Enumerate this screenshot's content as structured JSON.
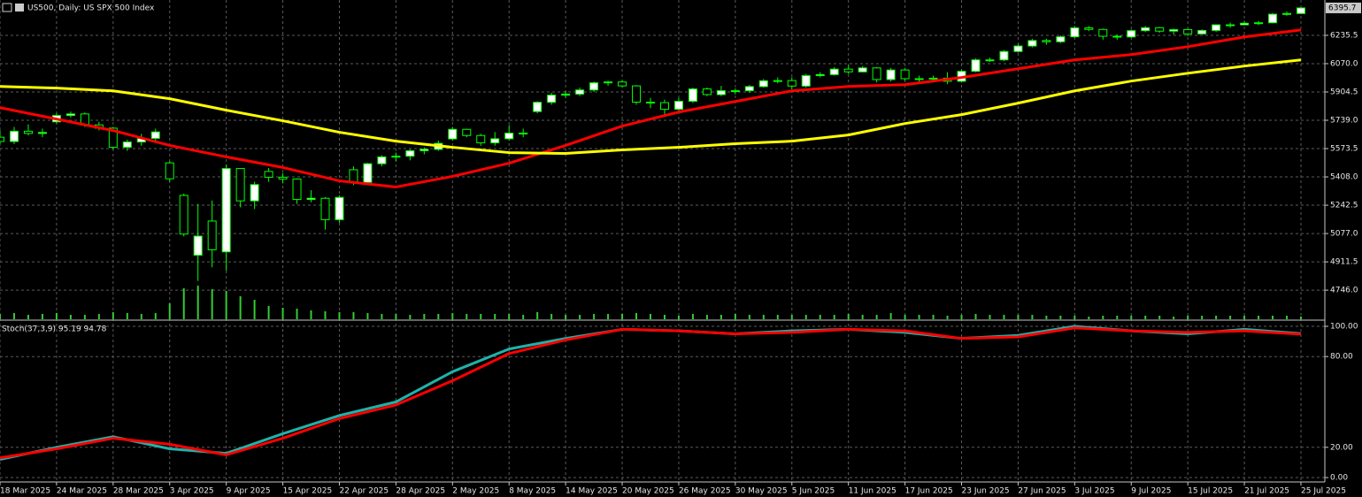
{
  "chart_data": [
    {
      "type": "candlestick",
      "title": "US500, Daily:  US SPX 500 Index",
      "categories": [
        "18 Mar 2025",
        null,
        null,
        null,
        "24 Mar 2025",
        null,
        null,
        null,
        "28 Mar 2025",
        null,
        null,
        null,
        "3 Apr 2025",
        null,
        null,
        null,
        "9 Apr 2025",
        null,
        null,
        null,
        "15 Apr 2025",
        null,
        null,
        null,
        "22 Apr 2025",
        null,
        null,
        null,
        "28 Apr 2025",
        null,
        null,
        null,
        "2 May 2025",
        null,
        null,
        null,
        "8 May 2025",
        null,
        null,
        null,
        "14 May 2025",
        null,
        null,
        null,
        "20 May 2025",
        null,
        null,
        null,
        "26 May 2025",
        null,
        null,
        null,
        "30 May 2025",
        null,
        null,
        null,
        "5 Jun 2025",
        null,
        null,
        null,
        "11 Jun 2025",
        null,
        null,
        null,
        "17 Jun 2025",
        null,
        null,
        null,
        "23 Jun 2025",
        null,
        null,
        null,
        "27 Jun 2025",
        null,
        null,
        null,
        "3 Jul 2025",
        null,
        null,
        null,
        "9 Jul 2025",
        null,
        null,
        null,
        "15 Jul 2025",
        null,
        null,
        null,
        "21 Jul 2025",
        null,
        null,
        null,
        "25 Jul 2025"
      ],
      "open": [
        5640,
        5615,
        5675,
        5662,
        5730,
        5767,
        5776,
        5712,
        5693,
        5581,
        5612,
        5633,
        5490,
        5300,
        4950,
        5150,
        4970,
        5457,
        5268,
        5440,
        5406,
        5396,
        5276,
        5283,
        5158,
        5450,
        5376,
        5485,
        5525,
        5529,
        5561,
        5569,
        5630,
        5686,
        5650,
        5607,
        5631,
        5664,
        5790,
        5844,
        5886,
        5892,
        5916,
        5958,
        5963,
        5940,
        5845,
        5842,
        5803,
        5850,
        5922,
        5889,
        5912,
        5912,
        5936,
        5970,
        5971,
        5939,
        6000,
        6006,
        6038,
        6022,
        6045,
        5977,
        6033,
        5982,
        5981,
        5985,
        5967,
        6025,
        6092,
        6092,
        6141,
        6173,
        6205,
        6198,
        6227,
        6279,
        6270,
        6230,
        6226,
        6263,
        6280,
        6260,
        6269,
        6244,
        6264,
        6297,
        6297,
        6306,
        6309,
        6359,
        6363
      ],
      "high": [
        5680,
        5700,
        5715,
        5690,
        5780,
        5790,
        5785,
        5730,
        5700,
        5625,
        5660,
        5690,
        5500,
        5310,
        5250,
        5270,
        5480,
        5460,
        5380,
        5460,
        5430,
        5400,
        5330,
        5290,
        5300,
        5470,
        5490,
        5535,
        5550,
        5570,
        5580,
        5620,
        5700,
        5690,
        5660,
        5670,
        5710,
        5690,
        5850,
        5900,
        5910,
        5930,
        5965,
        5970,
        5975,
        5945,
        5870,
        5860,
        5870,
        5930,
        5930,
        5940,
        5925,
        5945,
        5980,
        5990,
        5990,
        6010,
        6020,
        6050,
        6060,
        6055,
        6050,
        6045,
        6045,
        6000,
        6000,
        6020,
        6035,
        6100,
        6105,
        6150,
        6185,
        6215,
        6215,
        6235,
        6290,
        6290,
        6275,
        6240,
        6270,
        6290,
        6285,
        6275,
        6275,
        6270,
        6300,
        6310,
        6320,
        6320,
        6365,
        6375,
        6400
      ],
      "low": [
        5600,
        5600,
        5650,
        5640,
        5720,
        5755,
        5700,
        5680,
        5570,
        5560,
        5590,
        5610,
        5380,
        5060,
        4800,
        4880,
        4860,
        5230,
        5220,
        5380,
        5370,
        5250,
        5260,
        5100,
        5140,
        5360,
        5360,
        5470,
        5500,
        5505,
        5540,
        5560,
        5620,
        5640,
        5590,
        5590,
        5620,
        5640,
        5780,
        5830,
        5870,
        5880,
        5905,
        5940,
        5930,
        5830,
        5810,
        5770,
        5790,
        5840,
        5880,
        5880,
        5890,
        5900,
        5930,
        5955,
        5920,
        5930,
        5990,
        6000,
        6010,
        6020,
        5960,
        5965,
        5970,
        5960,
        5960,
        5950,
        5960,
        6020,
        6080,
        6085,
        6135,
        6165,
        6180,
        6190,
        6220,
        6260,
        6210,
        6210,
        6220,
        6255,
        6250,
        6240,
        6230,
        6240,
        6255,
        6280,
        6295,
        6295,
        6305,
        6350,
        6360
      ],
      "close": [
        5615,
        5675,
        5662,
        5668,
        5767,
        5776,
        5712,
        5693,
        5581,
        5612,
        5633,
        5671,
        5397,
        5074,
        5062,
        4982,
        5457,
        5268,
        5363,
        5406,
        5396,
        5276,
        5283,
        5158,
        5288,
        5376,
        5485,
        5525,
        5529,
        5561,
        5569,
        5604,
        5686,
        5650,
        5607,
        5631,
        5664,
        5660,
        5844,
        5886,
        5892,
        5916,
        5958,
        5963,
        5940,
        5845,
        5842,
        5803,
        5850,
        5922,
        5889,
        5912,
        5912,
        5936,
        5970,
        5971,
        5939,
        6000,
        6006,
        6038,
        6022,
        6045,
        5977,
        6033,
        5982,
        5981,
        5985,
        5967,
        6025,
        6092,
        6092,
        6141,
        6173,
        6205,
        6198,
        6227,
        6279,
        6270,
        6230,
        6226,
        6263,
        6280,
        6260,
        6269,
        6244,
        6264,
        6297,
        6297,
        6306,
        6309,
        6359,
        6363,
        6395.7
      ],
      "up_color": "#ffffff",
      "down_color": "#000000",
      "outline_color": "#00ff00",
      "series": [
        {
          "color": "#ff0000",
          "x": [
            0,
            4,
            8,
            12,
            16,
            20,
            24,
            28,
            32,
            36,
            40,
            44,
            48,
            52,
            56,
            60,
            64,
            68,
            72,
            76,
            80,
            84,
            88,
            92
          ],
          "values": [
            5813,
            5746,
            5679,
            5592,
            5525,
            5463,
            5385,
            5349,
            5411,
            5488,
            5592,
            5705,
            5787,
            5849,
            5911,
            5937,
            5947,
            5989,
            6040,
            6092,
            6123,
            6169,
            6226,
            6267
          ]
        },
        {
          "color": "#ffff00",
          "x": [
            0,
            4,
            8,
            12,
            16,
            20,
            24,
            28,
            32,
            36,
            40,
            44,
            48,
            52,
            56,
            60,
            64,
            68,
            72,
            76,
            80,
            84,
            88,
            92
          ],
          "values": [
            5937,
            5927,
            5911,
            5865,
            5798,
            5736,
            5669,
            5617,
            5581,
            5550,
            5545,
            5566,
            5581,
            5602,
            5617,
            5653,
            5720,
            5772,
            5839,
            5911,
            5968,
            6014,
            6056,
            6092
          ]
        }
      ],
      "volume": {
        "color": "#32cd32",
        "values": [
          6,
          7,
          5,
          6,
          7,
          5,
          5,
          6,
          8,
          7,
          6,
          7,
          18,
          35,
          38,
          34,
          32,
          26,
          22,
          15,
          13,
          12,
          10,
          9,
          8,
          8,
          7,
          6,
          6,
          5,
          6,
          6,
          7,
          6,
          6,
          6,
          6,
          5,
          8,
          6,
          5,
          5,
          6,
          6,
          6,
          7,
          6,
          5,
          4,
          6,
          5,
          5,
          6,
          5,
          5,
          5,
          5,
          5,
          5,
          5,
          6,
          5,
          5,
          7,
          5,
          5,
          5,
          4,
          5,
          6,
          5,
          5,
          5,
          5,
          4,
          4,
          4,
          3,
          4,
          4,
          4,
          4,
          4,
          3,
          4,
          4,
          4,
          4,
          4,
          4,
          4,
          4,
          3
        ]
      },
      "ylim": [
        4576,
        6442
      ],
      "yticks": [
        6235.5,
        {
          "value": 6070,
          "label": "6070.0"
        },
        5904.5,
        {
          "value": 5739,
          "label": "5739.0"
        },
        5573.5,
        {
          "value": 5408,
          "label": "5408.0"
        },
        5242.5,
        {
          "value": 5077,
          "label": "5077.0"
        },
        4911.5,
        {
          "value": 4746,
          "label": "4746.0"
        }
      ],
      "grid": true
    },
    {
      "type": "line",
      "title": "Stoch(37,3,9) 95.19 94.78",
      "series": [
        {
          "color": "#20b2aa",
          "x": [
            0,
            4,
            8,
            12,
            16,
            20,
            24,
            28,
            32,
            36,
            40,
            44,
            48,
            52,
            56,
            60,
            64,
            68,
            72,
            76,
            80,
            84,
            88,
            92
          ],
          "values": [
            12,
            20,
            27,
            19,
            16,
            29,
            41,
            50,
            70,
            85,
            92,
            98,
            97,
            95,
            97,
            98,
            96,
            92,
            94,
            100,
            97,
            95,
            98,
            95.19
          ]
        },
        {
          "color": "#ff0000",
          "x": [
            0,
            4,
            8,
            12,
            16,
            20,
            24,
            28,
            32,
            36,
            40,
            44,
            48,
            52,
            56,
            60,
            64,
            68,
            72,
            76,
            80,
            84,
            88,
            92
          ],
          "values": [
            13,
            19,
            26,
            22,
            15,
            26,
            39,
            48,
            64,
            82,
            91,
            98,
            97,
            95,
            96,
            98,
            97,
            92,
            93,
            99,
            97,
            96,
            97,
            94.78
          ]
        }
      ],
      "ylim": [
        0,
        100
      ],
      "yticks": [
        {
          "value": 100,
          "label": "100.00"
        },
        {
          "value": 80,
          "label": "80.00"
        },
        {
          "value": 20,
          "label": "20.00"
        },
        {
          "value": 0,
          "label": "0.00"
        }
      ],
      "grid": true
    }
  ]
}
